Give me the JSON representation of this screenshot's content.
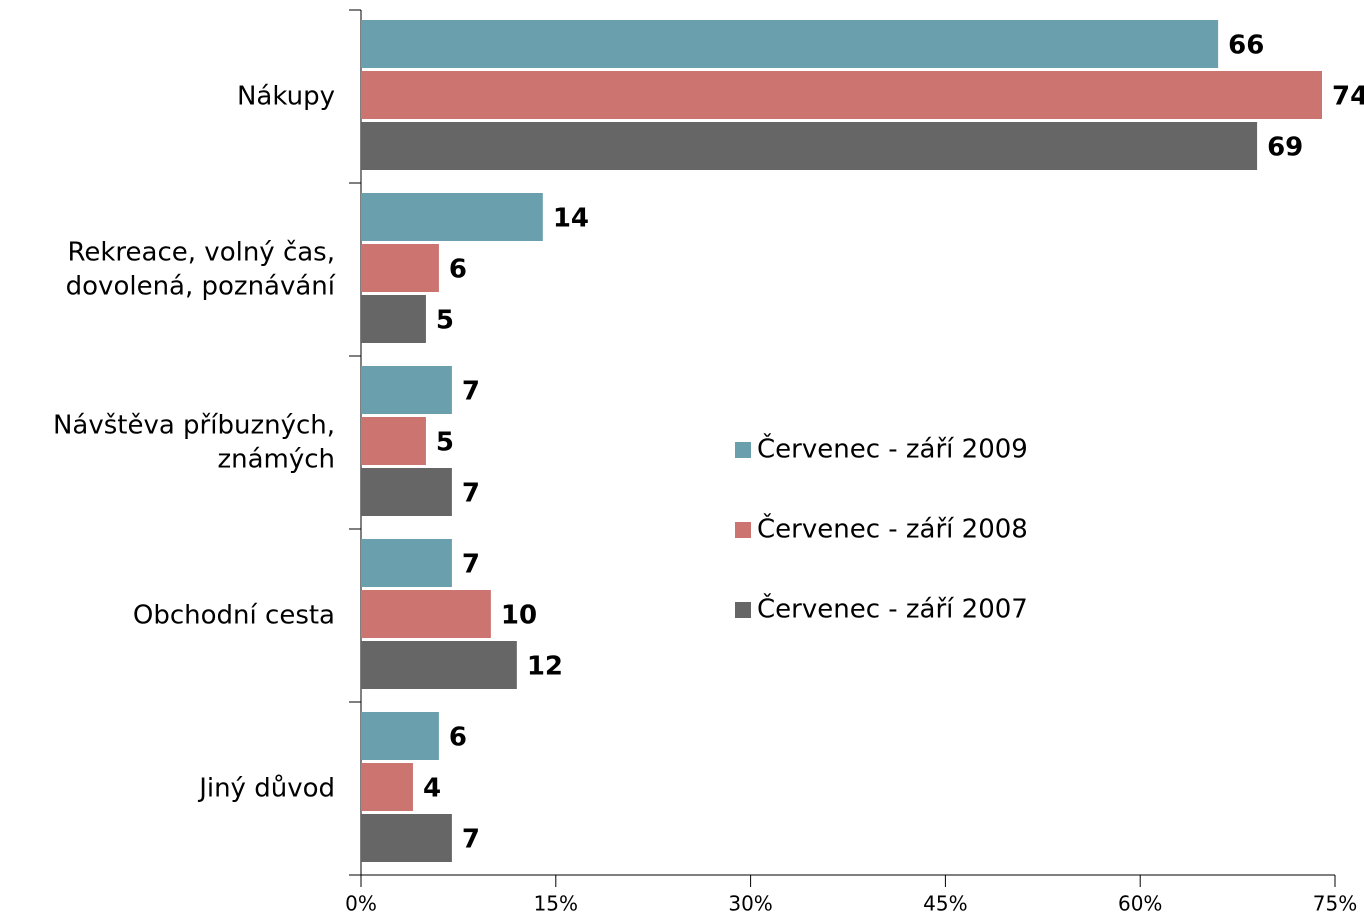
{
  "chart_data": {
    "type": "bar",
    "orientation": "horizontal",
    "categories": [
      "Nákupy",
      "Rekreace, volný čas, dovolená, poznávání",
      "Návštěva příbuzných, známých",
      "Obchodní cesta",
      "Jiný důvod"
    ],
    "series": [
      {
        "name": "Červenec - září 2009",
        "color": "#6aa0ae",
        "values": [
          66,
          14,
          7,
          7,
          6
        ]
      },
      {
        "name": "Červenec - září 2008",
        "color": "#cc7470",
        "values": [
          74,
          6,
          5,
          10,
          4
        ]
      },
      {
        "name": "Červenec - září 2007",
        "color": "#666666",
        "values": [
          69,
          5,
          7,
          12,
          7
        ]
      }
    ],
    "xlim": [
      0,
      75
    ],
    "xticks": [
      {
        "value": 0,
        "label": "0%"
      },
      {
        "value": 15,
        "label": "15%"
      },
      {
        "value": 30,
        "label": "30%"
      },
      {
        "value": 45,
        "label": "45%"
      },
      {
        "value": 60,
        "label": "60%"
      },
      {
        "value": 75,
        "label": "75%"
      }
    ],
    "legend": "right"
  }
}
